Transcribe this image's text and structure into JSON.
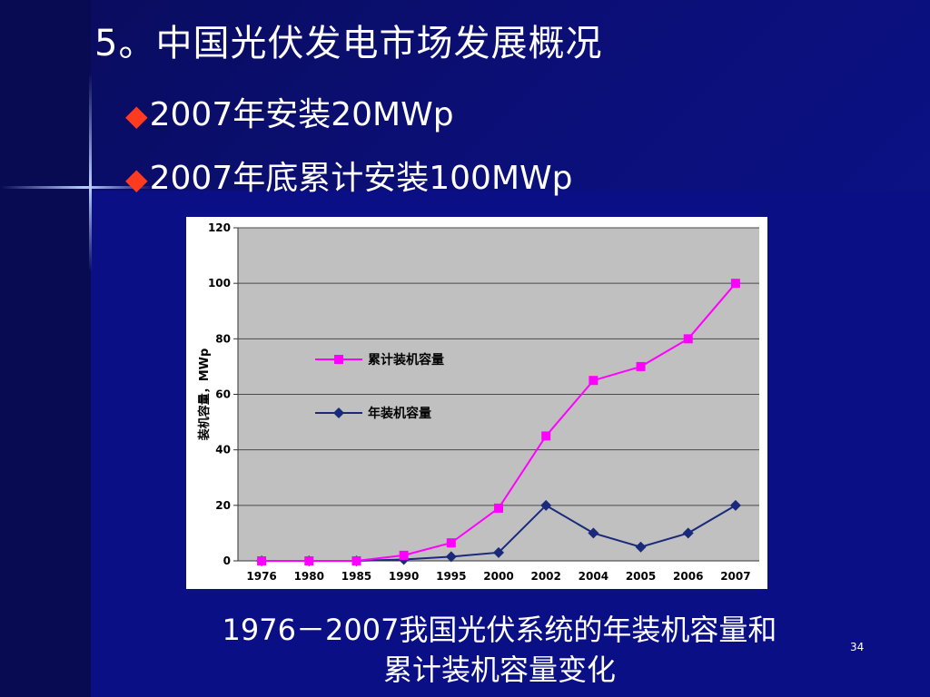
{
  "slide": {
    "title": "5。中国光伏发电市场发展概况",
    "bullets": [
      "2007年安装20MWp",
      "2007年底累计安装100MWp"
    ],
    "bullet_marker": "◆",
    "caption_lines": [
      "1976－2007我国光伏系统的年装机容量和",
      "累计装机容量变化"
    ],
    "page_number": "34"
  },
  "colors": {
    "background": "#0b0f7a",
    "bullet_marker": "#ff3b1f",
    "plot_area": "#c0c0c0",
    "cumulative_series": "#ff00ff",
    "annual_series": "#1a2a7a"
  },
  "chart_data": {
    "type": "line",
    "categories": [
      "1976",
      "1980",
      "1985",
      "1990",
      "1995",
      "2000",
      "2002",
      "2004",
      "2005",
      "2006",
      "2007"
    ],
    "series": [
      {
        "name": "累计装机容量",
        "values": [
          0,
          0,
          0,
          2,
          6.5,
          19,
          45,
          65,
          70,
          80,
          100
        ],
        "marker": "square",
        "color": "#ff00ff"
      },
      {
        "name": "年装机容量",
        "values": [
          0,
          0,
          0,
          0.5,
          1.5,
          3,
          20,
          10,
          5,
          10,
          20
        ],
        "marker": "diamond",
        "color": "#1a2a7a"
      }
    ],
    "ylabel": "装机容量，MWp",
    "xlabel": "",
    "ylim": [
      0,
      120
    ],
    "yticks": [
      0,
      20,
      40,
      60,
      80,
      100,
      120
    ],
    "grid": true,
    "legend_position": "left-middle"
  }
}
